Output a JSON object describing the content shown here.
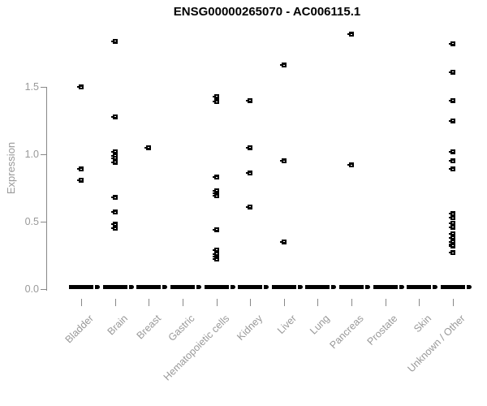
{
  "header": {
    "title": "ENSG00000265070 - AC006115.1"
  },
  "chart_data": {
    "type": "scatter",
    "title": "ENSG00000265070 - AC006115.1",
    "xlabel": "",
    "ylabel": "Expression",
    "ylim": [
      0,
      1.95
    ],
    "yticks": [
      0,
      0.5,
      1.0,
      1.5
    ],
    "ytick_labels": [
      "0.0",
      "0.5",
      "1.0",
      "1.5"
    ],
    "grid": false,
    "legend": "none",
    "marker": "open-square",
    "point_color": "#000000",
    "axis_color": "#888888",
    "label_color": "#999999",
    "background_color": "#ffffff",
    "categories": [
      "Bladder",
      "Brain",
      "Breast",
      "Gastric",
      "Hematopoietic cells",
      "Kidney",
      "Liver",
      "Lung",
      "Pancreas",
      "Prostate",
      "Skin",
      "Unknown / Other"
    ],
    "points_by_category": [
      {
        "category": "Bladder",
        "zero_stack": true,
        "values": [
          1.5,
          0.89,
          0.81
        ]
      },
      {
        "category": "Brain",
        "zero_stack": true,
        "values": [
          1.84,
          1.28,
          1.02,
          0.99,
          0.97,
          0.94,
          0.68,
          0.57,
          0.48,
          0.45
        ]
      },
      {
        "category": "Breast",
        "zero_stack": true,
        "values": [
          1.05
        ]
      },
      {
        "category": "Gastric",
        "zero_stack": true,
        "values": []
      },
      {
        "category": "Hematopoietic cells",
        "zero_stack": true,
        "values": [
          1.43,
          1.39,
          0.83,
          0.73,
          0.71,
          0.69,
          0.44,
          0.29,
          0.26,
          0.24,
          0.22
        ]
      },
      {
        "category": "Kidney",
        "zero_stack": true,
        "values": [
          1.4,
          1.05,
          0.86,
          0.61
        ]
      },
      {
        "category": "Liver",
        "zero_stack": true,
        "values": [
          1.66,
          0.95,
          0.35
        ]
      },
      {
        "category": "Lung",
        "zero_stack": true,
        "values": []
      },
      {
        "category": "Pancreas",
        "zero_stack": true,
        "values": [
          1.89,
          0.92
        ]
      },
      {
        "category": "Prostate",
        "zero_stack": true,
        "values": []
      },
      {
        "category": "Skin",
        "zero_stack": true,
        "values": []
      },
      {
        "category": "Unknown / Other",
        "zero_stack": true,
        "values": [
          1.82,
          1.61,
          1.4,
          1.25,
          1.02,
          0.95,
          0.89,
          0.56,
          0.53,
          0.49,
          0.46,
          0.41,
          0.38,
          0.35,
          0.33,
          0.32,
          0.27
        ]
      }
    ]
  }
}
